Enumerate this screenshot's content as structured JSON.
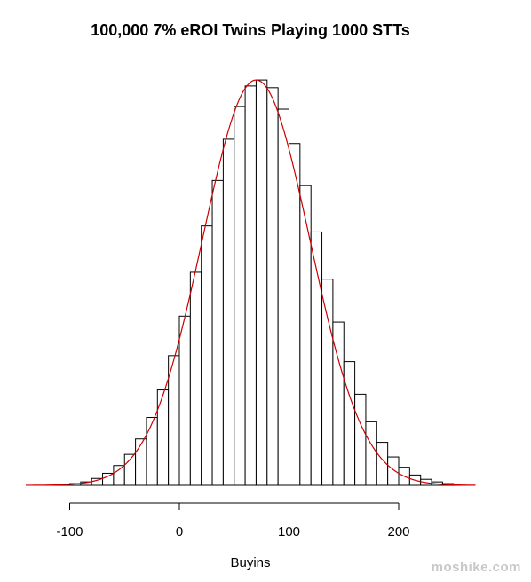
{
  "chart_data": {
    "type": "bar",
    "title": "100,000 7% eROI Twins Playing 1000 STTs",
    "xlabel": "Buyins",
    "ylabel": "",
    "xlim": [
      -140,
      270
    ],
    "x_ticks": [
      -100,
      0,
      100,
      200
    ],
    "bin_width": 10,
    "bins": [
      {
        "x0": -100,
        "x1": -90,
        "value": 2
      },
      {
        "x0": -90,
        "x1": -80,
        "value": 4
      },
      {
        "x0": -80,
        "x1": -70,
        "value": 8
      },
      {
        "x0": -70,
        "x1": -60,
        "value": 14
      },
      {
        "x0": -60,
        "x1": -50,
        "value": 23
      },
      {
        "x0": -50,
        "x1": -40,
        "value": 36
      },
      {
        "x0": -40,
        "x1": -30,
        "value": 54
      },
      {
        "x0": -30,
        "x1": -20,
        "value": 79
      },
      {
        "x0": -20,
        "x1": -10,
        "value": 111
      },
      {
        "x0": -10,
        "x1": 0,
        "value": 151
      },
      {
        "x0": 0,
        "x1": 10,
        "value": 197
      },
      {
        "x0": 10,
        "x1": 20,
        "value": 248
      },
      {
        "x0": 20,
        "x1": 30,
        "value": 302
      },
      {
        "x0": 30,
        "x1": 40,
        "value": 355
      },
      {
        "x0": 40,
        "x1": 50,
        "value": 403
      },
      {
        "x0": 50,
        "x1": 60,
        "value": 441
      },
      {
        "x0": 60,
        "x1": 70,
        "value": 465
      },
      {
        "x0": 70,
        "x1": 80,
        "value": 472
      },
      {
        "x0": 80,
        "x1": 90,
        "value": 463
      },
      {
        "x0": 90,
        "x1": 100,
        "value": 438
      },
      {
        "x0": 100,
        "x1": 110,
        "value": 398
      },
      {
        "x0": 110,
        "x1": 120,
        "value": 349
      },
      {
        "x0": 120,
        "x1": 130,
        "value": 295
      },
      {
        "x0": 130,
        "x1": 140,
        "value": 240
      },
      {
        "x0": 140,
        "x1": 150,
        "value": 190
      },
      {
        "x0": 150,
        "x1": 160,
        "value": 144
      },
      {
        "x0": 160,
        "x1": 170,
        "value": 106
      },
      {
        "x0": 170,
        "x1": 180,
        "value": 74
      },
      {
        "x0": 180,
        "x1": 190,
        "value": 50
      },
      {
        "x0": 190,
        "x1": 200,
        "value": 33
      },
      {
        "x0": 200,
        "x1": 210,
        "value": 21
      },
      {
        "x0": 210,
        "x1": 220,
        "value": 12
      },
      {
        "x0": 220,
        "x1": 230,
        "value": 7
      },
      {
        "x0": 230,
        "x1": 240,
        "value": 4
      },
      {
        "x0": 240,
        "x1": 250,
        "value": 2
      }
    ],
    "ylim": [
      0,
      480
    ],
    "density_curve": {
      "color": "#cc0000",
      "mean": 70,
      "sd": 49,
      "peak": 472
    },
    "grid": false,
    "legend": "none"
  },
  "watermark": "moshike.com"
}
